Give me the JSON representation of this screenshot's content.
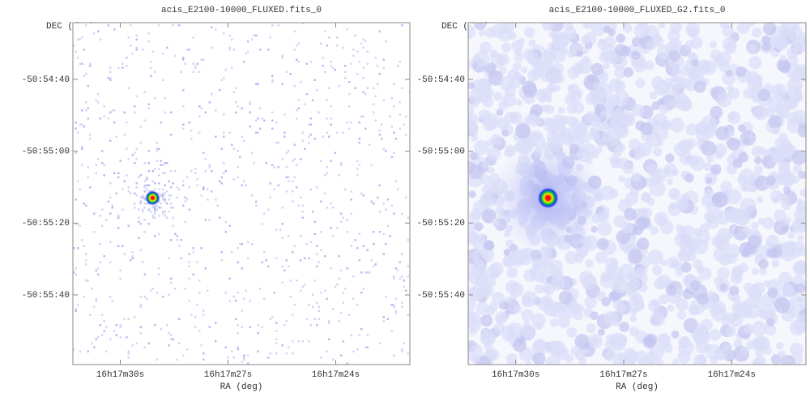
{
  "chart_data": [
    {
      "type": "image",
      "title": "acis_E2100-10000_FLUXED.fits_0",
      "xlabel": "RA (deg)",
      "ylabel": "DEC (deg)",
      "smoothed": false,
      "xlim": [
        244.3805,
        244.3414
      ],
      "ylim": [
        -50.93317,
        -50.90672
      ],
      "xticks": [
        {
          "value": 244.375,
          "label": "16h17m30s"
        },
        {
          "value": 244.3625,
          "label": "16h17m27s"
        },
        {
          "value": 244.35,
          "label": "16h17m24s"
        }
      ],
      "yticks": [
        {
          "value": -50.911111,
          "label": "-50:54:40"
        },
        {
          "value": -50.916667,
          "label": "-50:55:00"
        },
        {
          "value": -50.922222,
          "label": "-50:55:20"
        },
        {
          "value": -50.927778,
          "label": "-50:55:40"
        }
      ],
      "x": [
        244.37125
      ],
      "values": [
        -50.92028
      ]
    },
    {
      "type": "image",
      "title": "acis_E2100-10000_FLUXED_G2.fits_0",
      "xlabel": "RA (deg)",
      "ylabel": "DEC (deg)",
      "smoothed": true,
      "xlim": [
        244.3805,
        244.3414
      ],
      "ylim": [
        -50.93317,
        -50.90672
      ],
      "xticks": [
        {
          "value": 244.375,
          "label": "16h17m30s"
        },
        {
          "value": 244.3625,
          "label": "16h17m27s"
        },
        {
          "value": 244.35,
          "label": "16h17m24s"
        }
      ],
      "yticks": [
        {
          "value": -50.911111,
          "label": "-50:54:40"
        },
        {
          "value": -50.916667,
          "label": "-50:55:00"
        },
        {
          "value": -50.922222,
          "label": "-50:55:20"
        },
        {
          "value": -50.927778,
          "label": "-50:55:40"
        }
      ],
      "x": [
        244.37125
      ],
      "values": [
        -50.92028
      ]
    }
  ]
}
